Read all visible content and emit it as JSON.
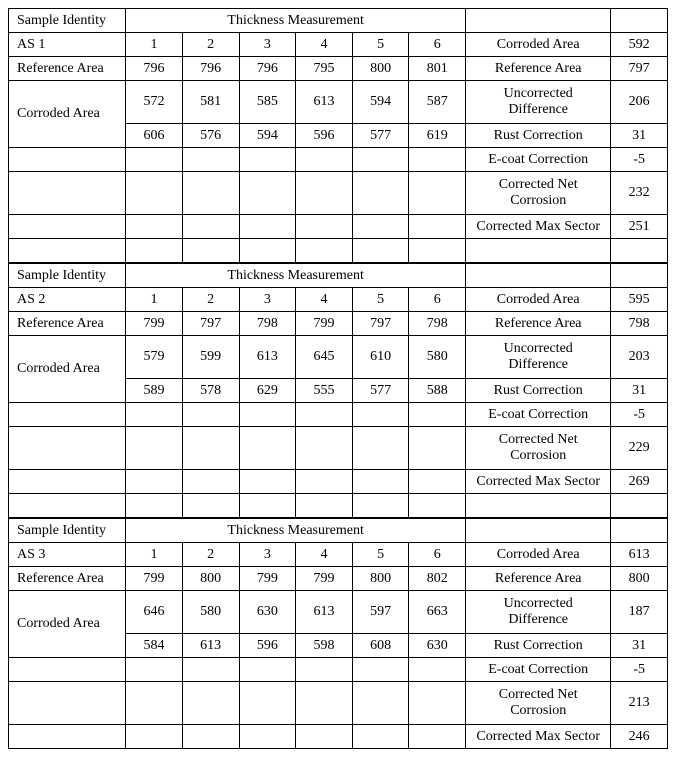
{
  "header": {
    "sample_identity": "Sample Identity",
    "thickness_measurement": "Thickness Measurement"
  },
  "side_labels": {
    "corroded_area": "Corroded Area",
    "reference_area": "Reference Area",
    "uncorrected_difference": "Uncorrected Difference",
    "rust_correction": "Rust Correction",
    "ecoat_correction": "E-coat Correction",
    "corrected_net_corrosion": "Corrected Net Corrosion",
    "corrected_max_sector": "Corrected Max Sector"
  },
  "row_labels": {
    "reference_area": "Reference Area",
    "corroded_area": "Corroded Area"
  },
  "cols": [
    "1",
    "2",
    "3",
    "4",
    "5",
    "6"
  ],
  "samples": [
    {
      "id": "AS 1",
      "reference": [
        "796",
        "796",
        "796",
        "795",
        "800",
        "801"
      ],
      "corroded1": [
        "572",
        "581",
        "585",
        "613",
        "594",
        "587"
      ],
      "corroded2": [
        "606",
        "576",
        "594",
        "596",
        "577",
        "619"
      ],
      "side": {
        "corroded_area": "592",
        "reference_area": "797",
        "uncorrected_difference": "206",
        "rust_correction": "31",
        "ecoat_correction": "-5",
        "corrected_net_corrosion": "232",
        "corrected_max_sector": "251"
      }
    },
    {
      "id": "AS 2",
      "reference": [
        "799",
        "797",
        "798",
        "799",
        "797",
        "798"
      ],
      "corroded1": [
        "579",
        "599",
        "613",
        "645",
        "610",
        "580"
      ],
      "corroded2": [
        "589",
        "578",
        "629",
        "555",
        "577",
        "588"
      ],
      "side": {
        "corroded_area": "595",
        "reference_area": "798",
        "uncorrected_difference": "203",
        "rust_correction": "31",
        "ecoat_correction": "-5",
        "corrected_net_corrosion": "229",
        "corrected_max_sector": "269"
      }
    },
    {
      "id": "AS 3",
      "reference": [
        "799",
        "800",
        "799",
        "799",
        "800",
        "802"
      ],
      "corroded1": [
        "646",
        "580",
        "630",
        "613",
        "597",
        "663"
      ],
      "corroded2": [
        "584",
        "613",
        "596",
        "598",
        "608",
        "630"
      ],
      "side": {
        "corroded_area": "613",
        "reference_area": "800",
        "uncorrected_difference": "187",
        "rust_correction": "31",
        "ecoat_correction": "-5",
        "corrected_net_corrosion": "213",
        "corrected_max_sector": "246"
      }
    }
  ]
}
